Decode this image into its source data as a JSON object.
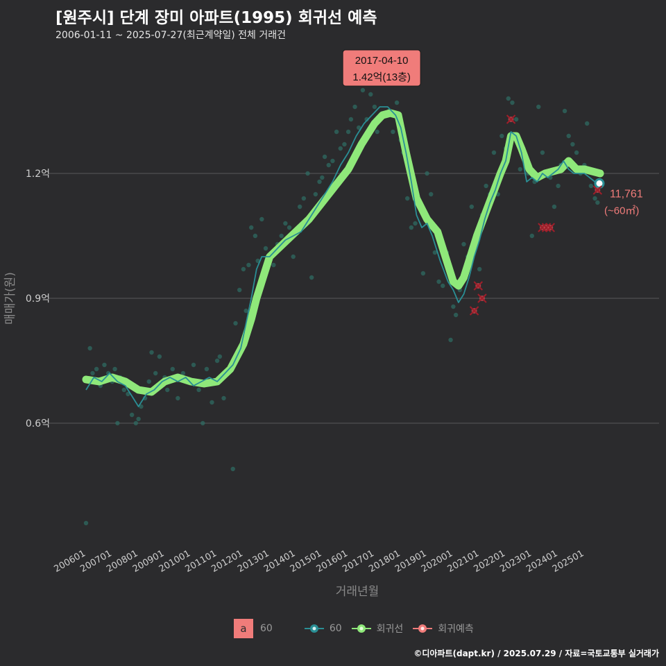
{
  "header": {
    "title": "[원주시] 단계 장미 아파트(1995) 회귀선 예측",
    "subtitle": "2006-01-11 ~ 2025-07-27(최근계약일) 전체 거래건"
  },
  "credit": "©디아파트(dapt.kr) / 2025.07.29 / 자료=국토교통부 실거래가",
  "legend": {
    "key_letter": "a",
    "key_label": "60",
    "series_area_label": "60",
    "series_regression_label": "회귀선",
    "series_forecast_label": "회귀예측"
  },
  "colors": {
    "background": "#2b2b2d",
    "grid": "#5a5a5a",
    "area_line": "#2a8f95",
    "scatter": "#2f6b62",
    "regression": "#8fe87a",
    "forecast": "#c24a4f",
    "annotation_bg": "#f07c7a",
    "end_label": "#f07c7a"
  },
  "chart_data": {
    "type": "line",
    "xlabel": "거래년월",
    "ylabel": "매매가(원)",
    "ylim": [
      0.3,
      1.5
    ],
    "y_ticks": [
      0.6,
      0.9,
      1.2
    ],
    "y_tick_labels": [
      "0.6억",
      "0.9억",
      "1.2억"
    ],
    "x_tick_labels": [
      "200601",
      "200701",
      "200801",
      "200901",
      "201001",
      "201101",
      "201201",
      "201301",
      "201401",
      "201501",
      "201601",
      "201701",
      "201801",
      "201901",
      "202001",
      "202101",
      "202201",
      "202301",
      "202401",
      "202501"
    ],
    "x_range": [
      2006.0,
      2025.65
    ],
    "grid": true,
    "legend_position": "bottom",
    "annotation": {
      "date": "2017-04-10",
      "value": "1.42억(13층)",
      "x": 2017.27,
      "y": 1.42
    },
    "end_label": {
      "line1": "11,761",
      "line2": "(~60㎡)",
      "x": 2025.57,
      "y": 1.176
    },
    "series": [
      {
        "name": "60",
        "role": "moving-average",
        "x": [
          2006.0,
          2006.3,
          2006.6,
          2006.9,
          2007.2,
          2007.5,
          2007.8,
          2008.0,
          2008.3,
          2008.6,
          2008.9,
          2009.2,
          2009.5,
          2009.8,
          2010.1,
          2010.4,
          2010.7,
          2011.0,
          2011.3,
          2011.6,
          2011.9,
          2012.1,
          2012.3,
          2012.5,
          2012.7,
          2013.0,
          2013.3,
          2013.6,
          2013.9,
          2014.2,
          2014.5,
          2014.8,
          2015.1,
          2015.4,
          2015.7,
          2016.0,
          2016.3,
          2016.6,
          2016.9,
          2017.2,
          2017.5,
          2017.8,
          2018.0,
          2018.2,
          2018.4,
          2018.6,
          2018.8,
          2019.0,
          2019.2,
          2019.5,
          2019.8,
          2020.0,
          2020.2,
          2020.4,
          2020.6,
          2020.8,
          2021.0,
          2021.2,
          2021.4,
          2021.6,
          2021.8,
          2022.0,
          2022.2,
          2022.4,
          2022.6,
          2022.8,
          2023.0,
          2023.2,
          2023.4,
          2023.6,
          2023.8,
          2024.0,
          2024.2,
          2024.4,
          2024.6,
          2024.8,
          2025.0,
          2025.2,
          2025.4,
          2025.57
        ],
        "y": [
          0.68,
          0.71,
          0.7,
          0.72,
          0.7,
          0.69,
          0.66,
          0.64,
          0.67,
          0.68,
          0.7,
          0.71,
          0.7,
          0.71,
          0.69,
          0.7,
          0.71,
          0.7,
          0.72,
          0.74,
          0.78,
          0.84,
          0.9,
          0.97,
          1.0,
          1.0,
          1.02,
          1.04,
          1.05,
          1.06,
          1.09,
          1.12,
          1.15,
          1.18,
          1.22,
          1.25,
          1.29,
          1.32,
          1.34,
          1.36,
          1.36,
          1.34,
          1.31,
          1.25,
          1.18,
          1.1,
          1.07,
          1.08,
          1.05,
          0.99,
          0.94,
          0.92,
          0.89,
          0.91,
          0.95,
          1.0,
          1.04,
          1.09,
          1.13,
          1.16,
          1.2,
          1.23,
          1.3,
          1.29,
          1.25,
          1.18,
          1.19,
          1.18,
          1.2,
          1.19,
          1.2,
          1.21,
          1.23,
          1.21,
          1.2,
          1.2,
          1.2,
          1.19,
          1.18,
          1.176
        ]
      },
      {
        "name": "회귀선",
        "role": "regression",
        "x": [
          2006.0,
          2006.5,
          2007.0,
          2007.5,
          2008.0,
          2008.5,
          2009.0,
          2009.5,
          2010.0,
          2010.5,
          2011.0,
          2011.5,
          2012.0,
          2012.3,
          2012.5,
          2012.8,
          2013.0,
          2013.5,
          2014.0,
          2014.5,
          2015.0,
          2015.5,
          2016.0,
          2016.5,
          2017.0,
          2017.3,
          2017.6,
          2017.9,
          2018.2,
          2018.6,
          2019.0,
          2019.4,
          2019.8,
          2020.0,
          2020.2,
          2020.4,
          2020.6,
          2020.9,
          2021.2,
          2021.5,
          2021.8,
          2022.0,
          2022.2,
          2022.4,
          2022.6,
          2022.9,
          2023.2,
          2023.5,
          2023.8,
          2024.1,
          2024.4,
          2024.7,
          2025.0,
          2025.3,
          2025.6
        ],
        "y": [
          0.705,
          0.7,
          0.71,
          0.7,
          0.68,
          0.675,
          0.7,
          0.71,
          0.7,
          0.695,
          0.7,
          0.73,
          0.79,
          0.85,
          0.9,
          0.96,
          1.0,
          1.03,
          1.06,
          1.09,
          1.13,
          1.17,
          1.21,
          1.27,
          1.32,
          1.34,
          1.345,
          1.34,
          1.25,
          1.14,
          1.09,
          1.06,
          0.98,
          0.94,
          0.93,
          0.95,
          0.99,
          1.05,
          1.1,
          1.15,
          1.2,
          1.23,
          1.29,
          1.29,
          1.26,
          1.21,
          1.19,
          1.2,
          1.205,
          1.21,
          1.23,
          1.21,
          1.21,
          1.205,
          1.2
        ]
      },
      {
        "name": "회귀예측",
        "role": "forecast",
        "x": [
          2020.8,
          2020.95,
          2021.1,
          2022.2,
          2023.4,
          2023.55,
          2023.7,
          2025.5
        ],
        "y": [
          0.87,
          0.93,
          0.9,
          1.33,
          1.07,
          1.07,
          1.07,
          1.16
        ]
      },
      {
        "name": "60",
        "role": "transactions",
        "x": [
          2006.0,
          2006.15,
          2006.25,
          2006.4,
          2006.55,
          2006.7,
          2006.85,
          2007.0,
          2007.1,
          2007.2,
          2007.3,
          2007.45,
          2007.6,
          2007.75,
          2007.9,
          2008.0,
          2008.1,
          2008.25,
          2008.4,
          2008.5,
          2008.65,
          2008.8,
          2009.0,
          2009.1,
          2009.3,
          2009.5,
          2009.7,
          2009.9,
          2010.1,
          2010.3,
          2010.45,
          2010.6,
          2010.8,
          2011.0,
          2011.1,
          2011.25,
          2011.4,
          2011.6,
          2011.7,
          2011.85,
          2012.0,
          2012.1,
          2012.2,
          2012.3,
          2012.45,
          2012.55,
          2012.7,
          2012.85,
          2013.0,
          2013.15,
          2013.3,
          2013.45,
          2013.6,
          2013.75,
          2013.9,
          2014.0,
          2014.15,
          2014.3,
          2014.45,
          2014.6,
          2014.75,
          2014.9,
          2015.0,
          2015.1,
          2015.25,
          2015.4,
          2015.55,
          2015.7,
          2015.85,
          2016.0,
          2016.1,
          2016.25,
          2016.4,
          2016.55,
          2016.7,
          2016.85,
          2017.0,
          2017.1,
          2017.25,
          2017.4,
          2017.55,
          2017.7,
          2017.85,
          2018.0,
          2018.1,
          2018.25,
          2018.4,
          2018.55,
          2018.7,
          2018.85,
          2019.0,
          2019.15,
          2019.3,
          2019.45,
          2019.6,
          2019.75,
          2019.9,
          2020.0,
          2020.1,
          2020.25,
          2020.4,
          2020.55,
          2020.7,
          2020.85,
          2021.0,
          2021.1,
          2021.25,
          2021.4,
          2021.55,
          2021.7,
          2021.85,
          2022.0,
          2022.1,
          2022.25,
          2022.4,
          2022.55,
          2022.7,
          2022.85,
          2023.0,
          2023.1,
          2023.25,
          2023.4,
          2023.55,
          2023.7,
          2023.85,
          2024.0,
          2024.1,
          2024.25,
          2024.4,
          2024.55,
          2024.7,
          2024.85,
          2025.0,
          2025.1,
          2025.25,
          2025.4,
          2025.5
        ],
        "y": [
          0.36,
          0.78,
          0.72,
          0.73,
          0.69,
          0.74,
          0.72,
          0.7,
          0.73,
          0.6,
          0.71,
          0.68,
          0.67,
          0.62,
          0.6,
          0.61,
          0.64,
          0.66,
          0.7,
          0.77,
          0.72,
          0.76,
          0.71,
          0.68,
          0.73,
          0.66,
          0.72,
          0.7,
          0.74,
          0.68,
          0.6,
          0.73,
          0.65,
          0.75,
          0.76,
          0.66,
          0.72,
          0.49,
          0.84,
          0.92,
          0.97,
          0.87,
          0.98,
          1.07,
          1.05,
          0.99,
          1.09,
          1.02,
          1.0,
          0.98,
          1.03,
          1.05,
          1.08,
          1.07,
          1.0,
          1.06,
          1.12,
          1.14,
          1.2,
          0.95,
          1.15,
          1.18,
          1.19,
          1.24,
          1.22,
          1.23,
          1.3,
          1.26,
          1.27,
          1.3,
          1.33,
          1.36,
          1.31,
          1.4,
          1.33,
          1.39,
          1.36,
          1.3,
          1.42,
          1.44,
          1.35,
          1.3,
          1.37,
          1.28,
          1.25,
          1.14,
          1.07,
          1.08,
          1.13,
          0.96,
          1.2,
          1.15,
          1.01,
          0.94,
          0.93,
          1.01,
          0.8,
          0.88,
          0.86,
          0.92,
          1.03,
          1.0,
          1.12,
          1.05,
          0.97,
          1.1,
          1.17,
          1.15,
          1.25,
          1.15,
          1.29,
          1.26,
          1.38,
          1.37,
          1.33,
          1.21,
          1.25,
          1.2,
          1.05,
          1.18,
          1.36,
          1.25,
          1.2,
          1.19,
          1.12,
          1.17,
          1.22,
          1.35,
          1.29,
          1.27,
          1.25,
          1.2,
          1.22,
          1.32,
          1.17,
          1.14,
          1.13
        ]
      }
    ]
  }
}
